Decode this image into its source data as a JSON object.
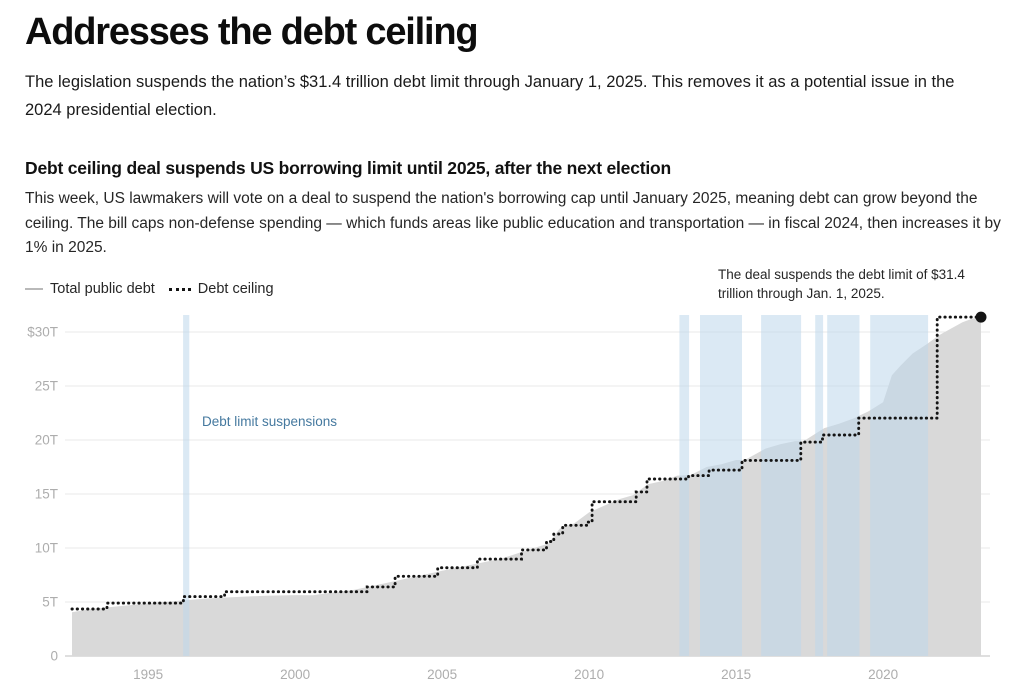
{
  "page": {
    "title": "Addresses the debt ceiling",
    "lede": "The legislation suspends the nation’s $31.4 trillion debt limit through January 1, 2025. This removes it as a potential issue in the 2024 presidential election."
  },
  "chart_data": {
    "type": "area",
    "title": "Debt ceiling deal suspends US borrowing limit until 2025, after the next election",
    "subtitle": "This week, US lawmakers will vote on a deal to suspend the nation's borrowing cap until January 2025, meaning debt can grow beyond the ceiling. The bill caps non-defense spending — which funds areas like public education and transportation — in fiscal 2024, then increases it by 1% in 2025.",
    "annotation": "The deal suspends the debt limit of $31.4 trillion through Jan. 1, 2025.",
    "y_unit": "trillions of US dollars ($T)",
    "x_domain": [
      1992.41,
      2023.33
    ],
    "y_domain": [
      0,
      32.5
    ],
    "grid": true,
    "legend_position": "top-left",
    "yticks": [
      {
        "value": 30,
        "label": "$30T"
      },
      {
        "value": 25,
        "label": "25T"
      },
      {
        "value": 20,
        "label": "20T"
      },
      {
        "value": 15,
        "label": "15T"
      },
      {
        "value": 10,
        "label": "10T"
      },
      {
        "value": 5,
        "label": "5T"
      },
      {
        "value": 0,
        "label": "0"
      }
    ],
    "xticks": [
      {
        "value": 1995,
        "label": "1995"
      },
      {
        "value": 2000,
        "label": "2000"
      },
      {
        "value": 2005,
        "label": "2005"
      },
      {
        "value": 2010,
        "label": "2010"
      },
      {
        "value": 2015,
        "label": "2015"
      },
      {
        "value": 2020,
        "label": "2020"
      }
    ],
    "legend": [
      {
        "name": "Total public debt",
        "style": "line",
        "color": "#b9b9b9"
      },
      {
        "name": "Debt ceiling",
        "style": "dotted",
        "color": "#141414"
      }
    ],
    "series": [
      {
        "name": "Total public debt",
        "type": "area",
        "color": "#d9d9d9",
        "points": [
          [
            1992.41,
            4.05
          ],
          [
            1993,
            4.32
          ],
          [
            1994,
            4.6
          ],
          [
            1995,
            4.87
          ],
          [
            1996,
            5.1
          ],
          [
            1997,
            5.32
          ],
          [
            1998,
            5.46
          ],
          [
            1999,
            5.58
          ],
          [
            2000,
            5.64
          ],
          [
            2000.6,
            5.62
          ],
          [
            2001,
            5.78
          ],
          [
            2002,
            6.12
          ],
          [
            2003,
            6.7
          ],
          [
            2004,
            7.3
          ],
          [
            2005,
            7.9
          ],
          [
            2006,
            8.45
          ],
          [
            2007,
            9.0
          ],
          [
            2008,
            9.9
          ],
          [
            2008.6,
            10.4
          ],
          [
            2009,
            11.8
          ],
          [
            2009.5,
            12.3
          ],
          [
            2010,
            13.3
          ],
          [
            2010.5,
            13.9
          ],
          [
            2011,
            14.5
          ],
          [
            2011.5,
            14.9
          ],
          [
            2012,
            15.9
          ],
          [
            2012.5,
            16.2
          ],
          [
            2013,
            16.7
          ],
          [
            2013.45,
            16.75
          ],
          [
            2014,
            17.5
          ],
          [
            2014.5,
            17.75
          ],
          [
            2015,
            18.15
          ],
          [
            2015.3,
            18.15
          ],
          [
            2016,
            19.2
          ],
          [
            2016.5,
            19.6
          ],
          [
            2017,
            19.9
          ],
          [
            2017.3,
            19.9
          ],
          [
            2018,
            21.1
          ],
          [
            2018.5,
            21.5
          ],
          [
            2019,
            22.0
          ],
          [
            2019.5,
            22.65
          ],
          [
            2020,
            23.5
          ],
          [
            2020.3,
            26.0
          ],
          [
            2020.6,
            26.9
          ],
          [
            2021,
            28.0
          ],
          [
            2021.5,
            28.9
          ],
          [
            2021.9,
            29.7
          ],
          [
            2022.3,
            30.3
          ],
          [
            2022.7,
            30.9
          ],
          [
            2023,
            31.2
          ],
          [
            2023.33,
            31.4
          ]
        ]
      },
      {
        "name": "Debt ceiling",
        "type": "step",
        "line": "dotted",
        "color": "#141414",
        "end_dot": true,
        "points": [
          [
            1992.41,
            4.35
          ],
          [
            1993.6,
            4.9
          ],
          [
            1996.2,
            5.5
          ],
          [
            1997.6,
            5.95
          ],
          [
            2002.45,
            6.4
          ],
          [
            2003.4,
            7.38
          ],
          [
            2004.85,
            8.18
          ],
          [
            2006.2,
            8.97
          ],
          [
            2007.7,
            9.82
          ],
          [
            2008.55,
            10.6
          ],
          [
            2008.8,
            11.3
          ],
          [
            2009.1,
            12.1
          ],
          [
            2009.95,
            12.4
          ],
          [
            2010.1,
            14.29
          ],
          [
            2011.6,
            15.19
          ],
          [
            2011.97,
            16.39
          ],
          [
            2013.38,
            16.7
          ],
          [
            2014.08,
            17.21
          ],
          [
            2015.2,
            18.11
          ],
          [
            2017.2,
            19.81
          ],
          [
            2017.94,
            20.46
          ],
          [
            2019.17,
            22.03
          ],
          [
            2021.84,
            31.38
          ],
          [
            2023.33,
            31.38
          ]
        ]
      }
    ],
    "suspensions": {
      "label": "Debt limit suspensions",
      "label_color": "#45799f",
      "band_color": "rgba(190,215,235,0.55)",
      "ranges": [
        [
          1996.19,
          1996.4
        ],
        [
          2013.07,
          2013.4
        ],
        [
          2013.77,
          2015.2
        ],
        [
          2015.85,
          2017.21
        ],
        [
          2017.69,
          2017.96
        ],
        [
          2018.1,
          2019.2
        ],
        [
          2019.56,
          2021.53
        ]
      ]
    }
  }
}
